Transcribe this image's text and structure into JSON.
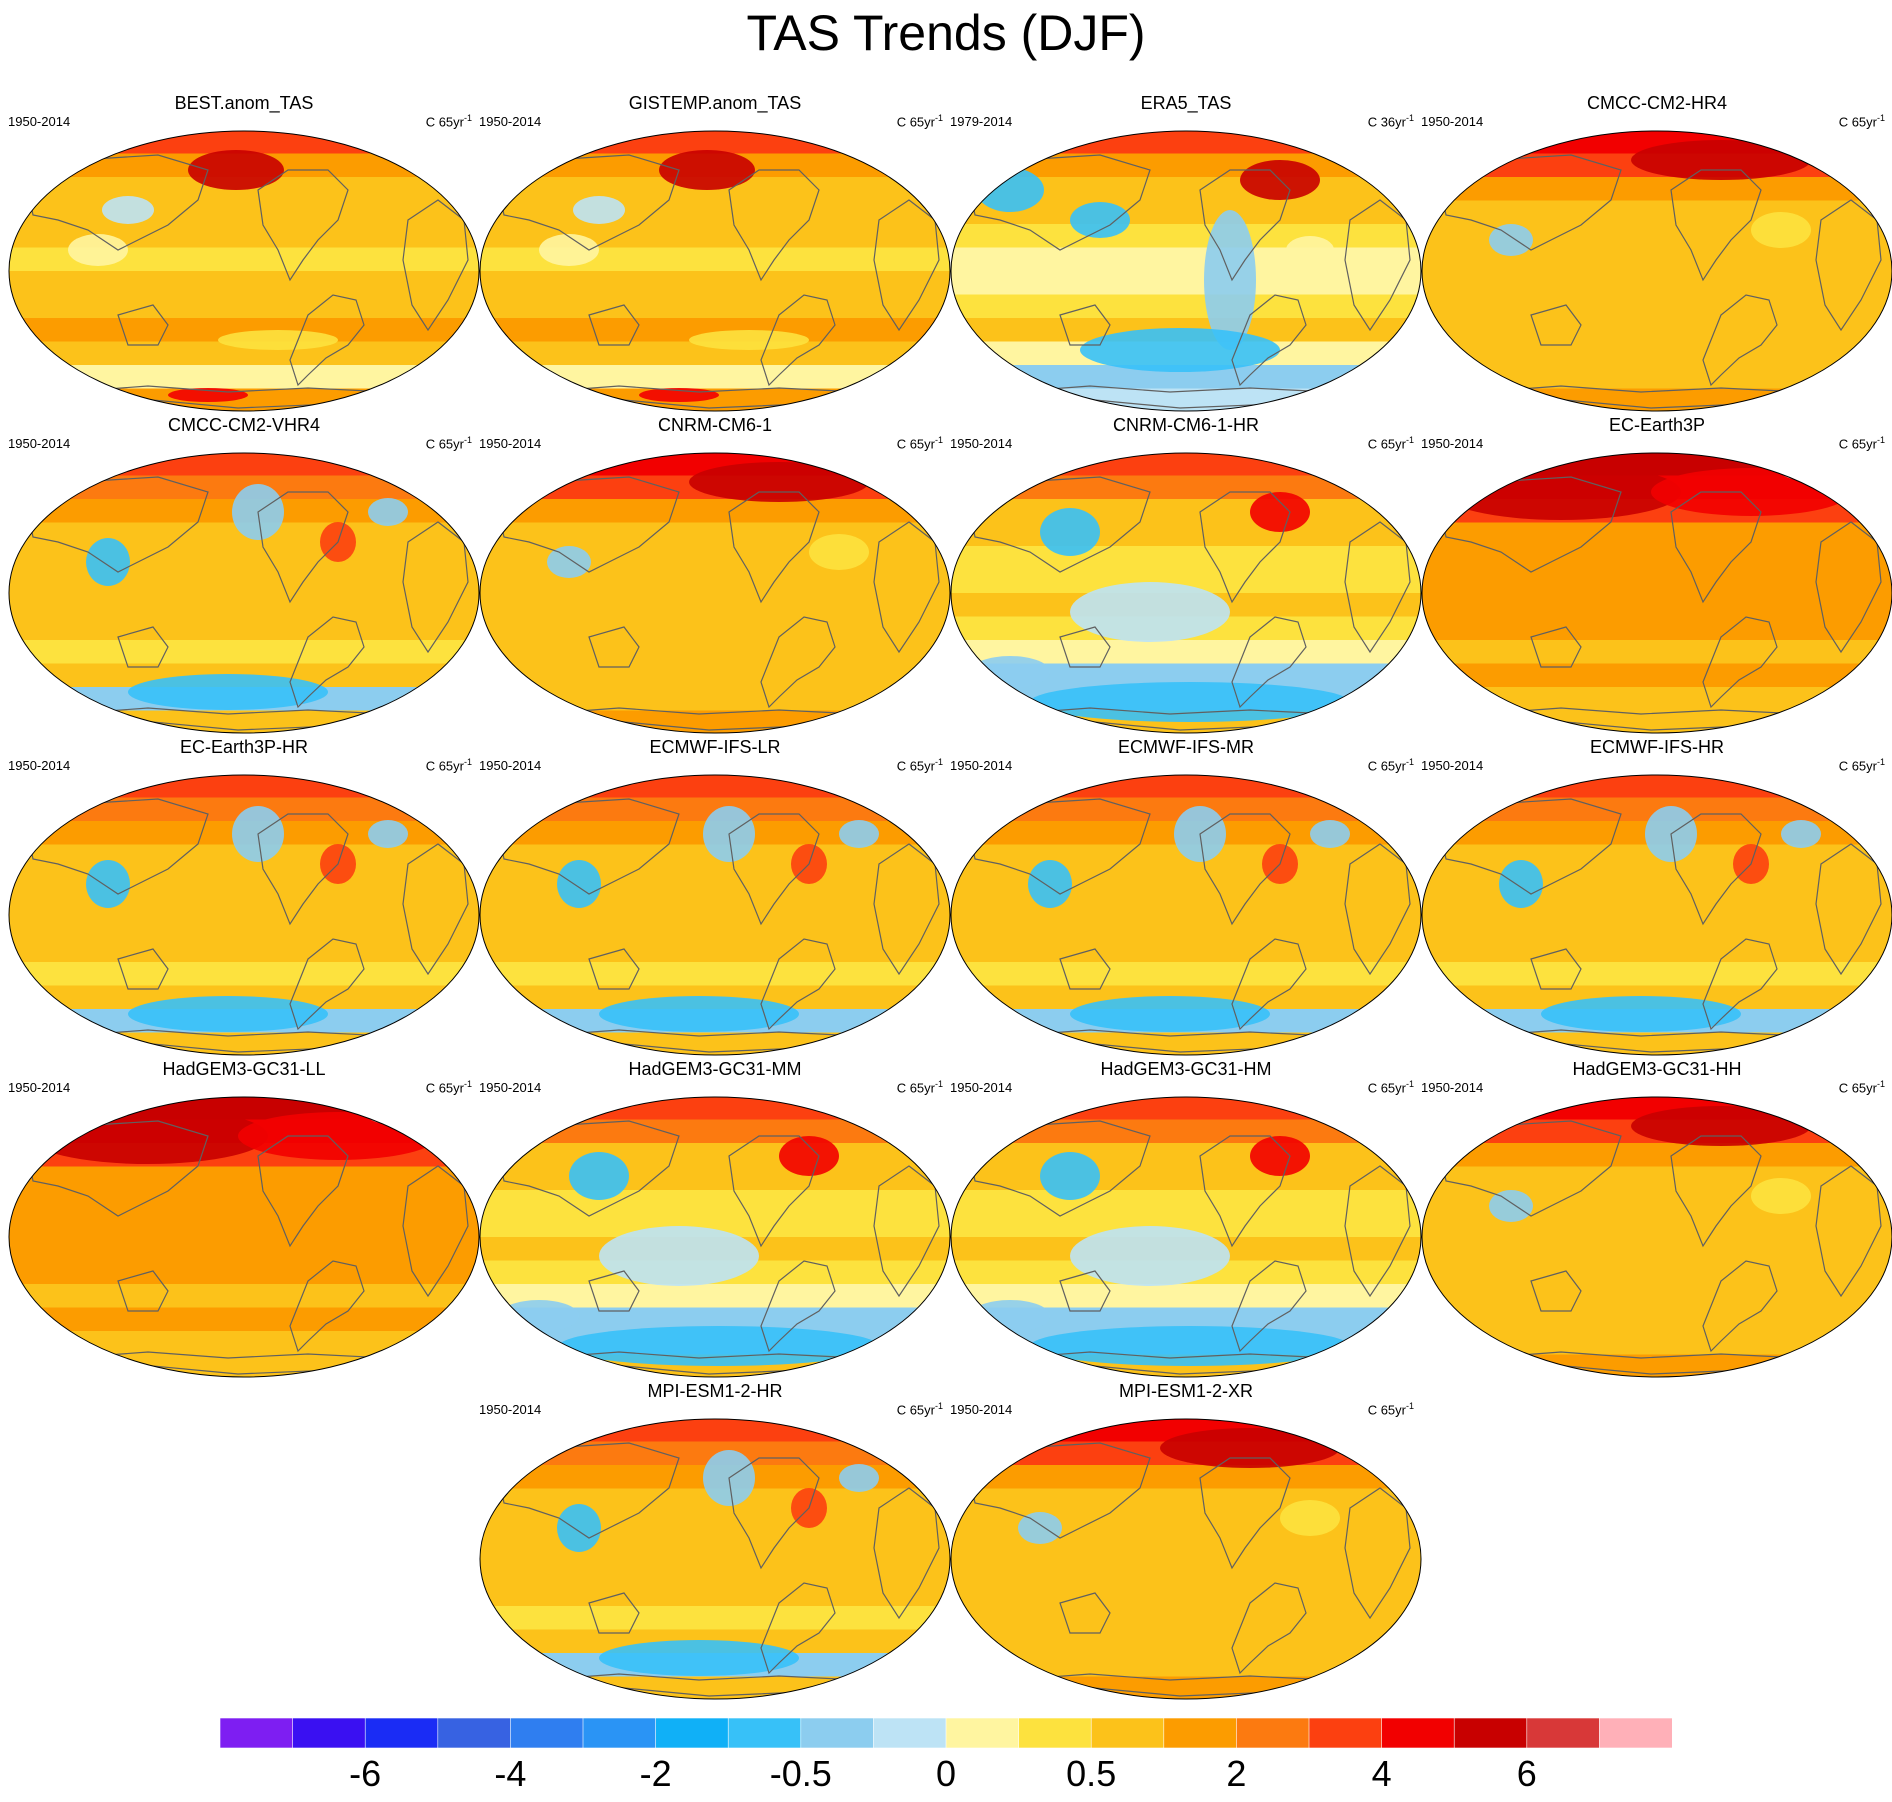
{
  "title": "TAS Trends (DJF)",
  "colors": {
    "scale": [
      "#7e1ef2",
      "#3a10f2",
      "#1a2cf5",
      "#3762e2",
      "#2f7ef0",
      "#2a94f5",
      "#10b0f7",
      "#37c1f8",
      "#8ccdef",
      "#bde3f5",
      "#fff5a0",
      "#fde23e",
      "#fcc21a",
      "#fc9c00",
      "#fc7a10",
      "#fc4010",
      "#f20000",
      "#c80000",
      "#d83838",
      "#ffb0b8"
    ],
    "coast": "#606060"
  },
  "colorbar": {
    "labels": [
      "-6",
      "-4",
      "-2",
      "-0.5",
      "0",
      "0.5",
      "2",
      "4",
      "6"
    ]
  },
  "panels": [
    {
      "title": "BEST.anom_TAS",
      "period": "1950-2014",
      "units": "C 65yr",
      "units_sup": "-1",
      "pattern": "obs"
    },
    {
      "title": "GISTEMP.anom_TAS",
      "period": "1950-2014",
      "units": "C 65yr",
      "units_sup": "-1",
      "pattern": "obs"
    },
    {
      "title": "ERA5_TAS",
      "period": "1979-2014",
      "units": "C 36yr",
      "units_sup": "-1",
      "pattern": "era5"
    },
    {
      "title": "CMCC-CM2-HR4",
      "period": "1950-2014",
      "units": "C 65yr",
      "units_sup": "-1",
      "pattern": "warm"
    },
    {
      "title": "CMCC-CM2-VHR4",
      "period": "1950-2014",
      "units": "C 65yr",
      "units_sup": "-1",
      "pattern": "mixed"
    },
    {
      "title": "CNRM-CM6-1",
      "period": "1950-2014",
      "units": "C 65yr",
      "units_sup": "-1",
      "pattern": "warm"
    },
    {
      "title": "CNRM-CM6-1-HR",
      "period": "1950-2014",
      "units": "C 65yr",
      "units_sup": "-1",
      "pattern": "cool"
    },
    {
      "title": "EC-Earth3P",
      "period": "1950-2014",
      "units": "C 65yr",
      "units_sup": "-1",
      "pattern": "hot"
    },
    {
      "title": "EC-Earth3P-HR",
      "period": "1950-2014",
      "units": "C 65yr",
      "units_sup": "-1",
      "pattern": "mixed"
    },
    {
      "title": "ECMWF-IFS-LR",
      "period": "1950-2014",
      "units": "C 65yr",
      "units_sup": "-1",
      "pattern": "mixed"
    },
    {
      "title": "ECMWF-IFS-MR",
      "period": "1950-2014",
      "units": "C 65yr",
      "units_sup": "-1",
      "pattern": "mixed"
    },
    {
      "title": "ECMWF-IFS-HR",
      "period": "1950-2014",
      "units": "C 65yr",
      "units_sup": "-1",
      "pattern": "mixed"
    },
    {
      "title": "HadGEM3-GC31-LL",
      "period": "1950-2014",
      "units": "C 65yr",
      "units_sup": "-1",
      "pattern": "hot"
    },
    {
      "title": "HadGEM3-GC31-MM",
      "period": "1950-2014",
      "units": "C 65yr",
      "units_sup": "-1",
      "pattern": "cool"
    },
    {
      "title": "HadGEM3-GC31-HM",
      "period": "1950-2014",
      "units": "C 65yr",
      "units_sup": "-1",
      "pattern": "cool"
    },
    {
      "title": "HadGEM3-GC31-HH",
      "period": "1950-2014",
      "units": "C 65yr",
      "units_sup": "-1",
      "pattern": "warm"
    },
    {
      "title": "MPI-ESM1-2-HR",
      "period": "1950-2014",
      "units": "C 65yr",
      "units_sup": "-1",
      "pattern": "mixed"
    },
    {
      "title": "MPI-ESM1-2-XR",
      "period": "1950-2014",
      "units": "C 65yr",
      "units_sup": "-1",
      "pattern": "warm"
    }
  ]
}
